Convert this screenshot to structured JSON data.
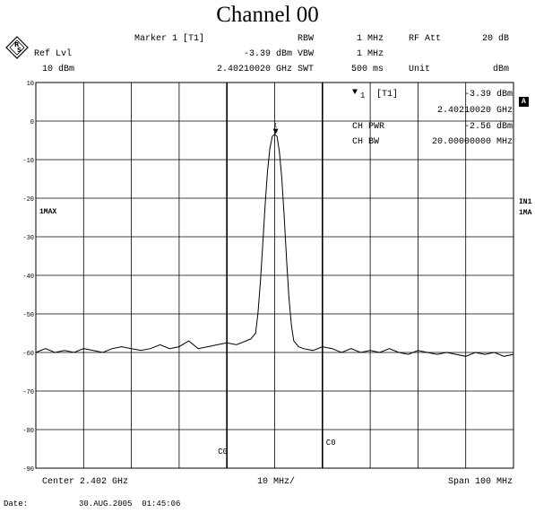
{
  "title": "Channel 00",
  "header": {
    "marker_label": "Marker 1 [T1]",
    "ref_lvl_label": "Ref Lvl",
    "ref_lvl_value": "10 dBm",
    "marker_level": "-3.39 dBm",
    "marker_freq": "2.40210020 GHz",
    "rbw_label": "RBW",
    "rbw_value": "1 MHz",
    "vbw_label": "VBW",
    "vbw_value": "1 MHz",
    "swt_label": "SWT",
    "swt_value": "500 ms",
    "rf_att_label": "RF Att",
    "rf_att_value": "20 dB",
    "unit_label": "Unit",
    "unit_value": "dBm"
  },
  "marker_table": {
    "marker_name": "1",
    "marker_trace": "[T1]",
    "marker_level": "-3.39 dBm",
    "marker_freq": "2.40210020 GHz",
    "ch_pwr_label": "CH PWR",
    "ch_pwr_value": "-2.56 dBm",
    "ch_bw_label": "CH BW",
    "ch_bw_value": "20.00000000 MHz"
  },
  "side_labels": {
    "trace_mode": "1MAX",
    "right_box": "A",
    "right_in1": "IN1",
    "right_1ma": "1MA"
  },
  "footer": {
    "center": "Center 2.402 GHz",
    "div": "10 MHz/",
    "span": "Span 100 MHz",
    "date_label": "Date:",
    "date_value": "30.AUG.2005  01:45:06"
  },
  "chart_data": {
    "type": "line",
    "title": "Channel 00",
    "xlabel": "",
    "ylabel": "",
    "x_unit": "MHz offset from center 2.402 GHz",
    "xlim": [
      -50,
      50
    ],
    "ylim": [
      -90,
      10
    ],
    "y_unit": "dBm",
    "yticks": [
      10,
      0,
      -10,
      -20,
      -30,
      -40,
      -50,
      -60,
      -70,
      -80,
      -90
    ],
    "grid": true,
    "series": [
      {
        "x": [
          -50,
          -48,
          -46,
          -44,
          -42,
          -40,
          -38,
          -36,
          -34,
          -32,
          -30,
          -28,
          -26,
          -24,
          -22,
          -20,
          -18,
          -16,
          -14,
          -12,
          -10,
          -8,
          -6,
          -5,
          -4,
          -3.5,
          -3,
          -2.5,
          -2,
          -1.5,
          -1,
          -0.5,
          0,
          0.5,
          1,
          1.5,
          2,
          2.5,
          3,
          3.5,
          4,
          5,
          6,
          8,
          10,
          12,
          14,
          16,
          18,
          20,
          22,
          24,
          26,
          28,
          30,
          32,
          34,
          36,
          38,
          40,
          42,
          44,
          46,
          48,
          50
        ],
        "y": [
          -60,
          -59,
          -60,
          -59.5,
          -60,
          -59,
          -59.5,
          -60,
          -59,
          -58.5,
          -59,
          -59.5,
          -59,
          -58,
          -59,
          -58.5,
          -57,
          -59,
          -58.5,
          -58,
          -57.5,
          -58,
          -57,
          -56.5,
          -55,
          -50,
          -42,
          -32,
          -22,
          -13,
          -7,
          -4,
          -3.4,
          -4,
          -8,
          -15,
          -25,
          -36,
          -46,
          -53,
          -57,
          -58.5,
          -59,
          -59.5,
          -58.5,
          -59,
          -60,
          -59,
          -60,
          -59.5,
          -60,
          -59,
          -60,
          -60.5,
          -59.5,
          -60,
          -60.5,
          -60,
          -60.5,
          -61,
          -60,
          -60.5,
          -60,
          -61,
          -60.5
        ]
      }
    ],
    "marker": {
      "label": "1",
      "x": 0.2,
      "y": -3.39
    },
    "channel_lines_x": [
      -10,
      10
    ],
    "channel_line_labels": [
      "C0",
      "C0"
    ]
  }
}
